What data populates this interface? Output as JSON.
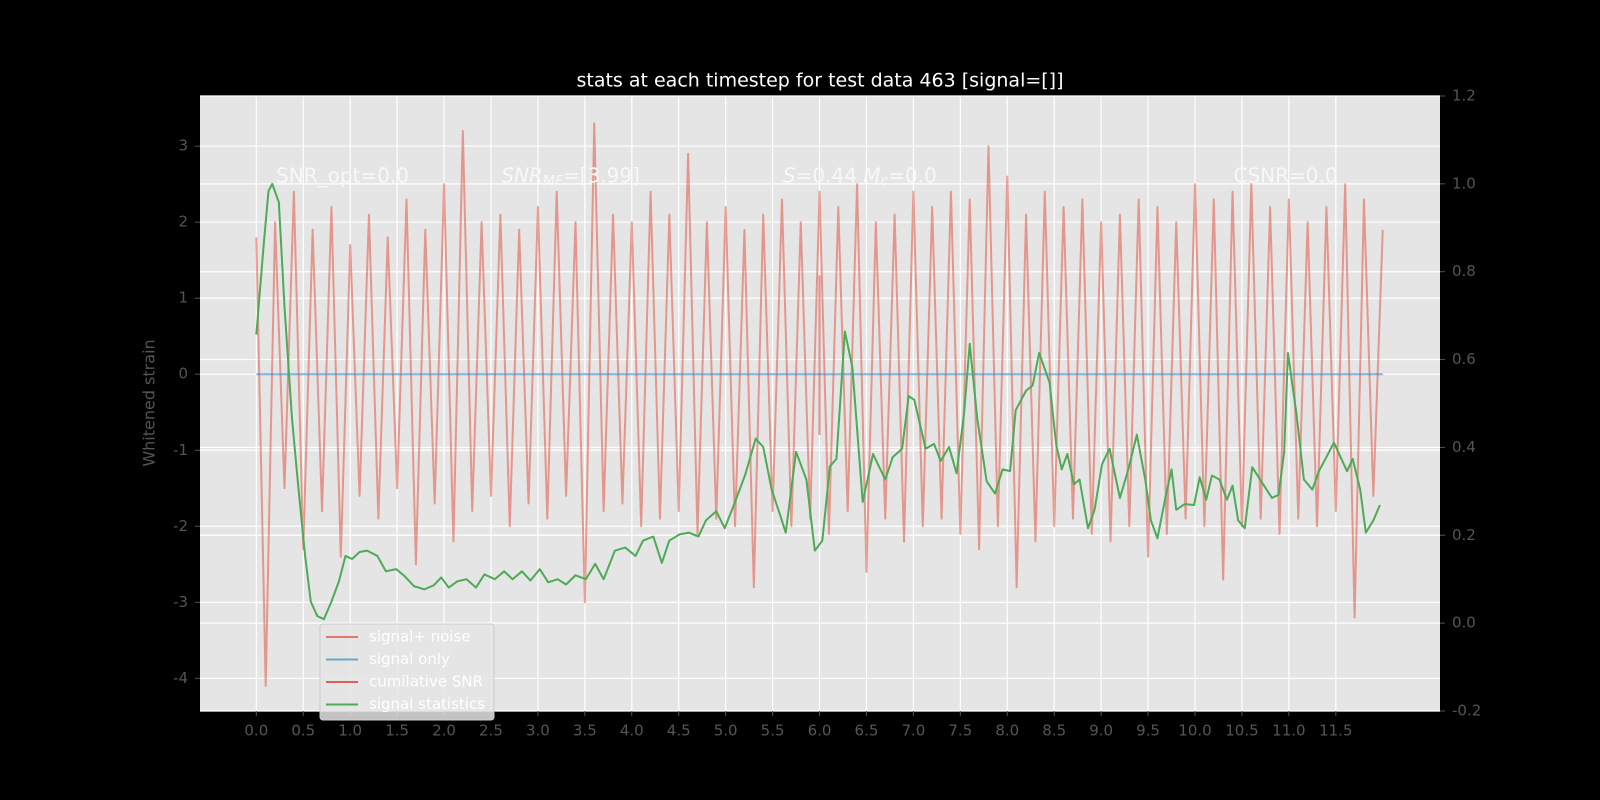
{
  "chart_data": {
    "type": "line",
    "title": "stats at each timestep for test data 463 [signal=[]]",
    "ylabel": "Whitened strain",
    "xlim": [
      -0.6,
      12.61
    ],
    "ylim": [
      -4.43,
      3.66
    ],
    "y2lim": [
      -0.2,
      1.2
    ],
    "xticks": [
      {
        "value": 0,
        "label": "0.0"
      },
      0.5,
      {
        "value": 1,
        "label": "1.0"
      },
      1.5,
      {
        "value": 2,
        "label": "2.0"
      },
      2.5,
      {
        "value": 3,
        "label": "3.0"
      },
      3.5,
      {
        "value": 4,
        "label": "4.0"
      },
      4.5,
      {
        "value": 5,
        "label": "5.0"
      },
      5.5,
      {
        "value": 6,
        "label": "6.0"
      },
      6.5,
      {
        "value": 7,
        "label": "7.0"
      },
      7.5,
      {
        "value": 8,
        "label": "8.0"
      },
      8.5,
      {
        "value": 9,
        "label": "9.0"
      },
      9.5,
      {
        "value": 10,
        "label": "10.0"
      },
      10.5,
      {
        "value": 11,
        "label": "11.0"
      },
      11.5
    ],
    "yticks": [
      -4,
      -3,
      -2,
      -1,
      0,
      1,
      2,
      3
    ],
    "y2ticks": [
      -0.2,
      {
        "value": 0,
        "label": "0.0"
      },
      0.2,
      0.4,
      0.6,
      0.8,
      {
        "value": 1,
        "label": "1.0"
      },
      1.2
    ],
    "grid": true,
    "legend": "lower left",
    "annotations": [
      {
        "x": 0.21,
        "y": 2.6,
        "parts": [
          {
            "text": "SNR_opt=0.0"
          }
        ]
      },
      {
        "x": 2.61,
        "y": 2.6,
        "parts": [
          {
            "text": "SNR",
            "italic": true
          },
          {
            "text": "MF",
            "italic": true,
            "sub": true
          },
          {
            "text": "=[3.99]"
          }
        ]
      },
      {
        "x": 5.61,
        "y": 2.6,
        "parts": [
          {
            "text": "S",
            "italic": true
          },
          {
            "text": "=0.44   "
          },
          {
            "text": "M",
            "italic": true
          },
          {
            "text": "c",
            "italic": true,
            "sub": true
          },
          {
            "text": "=0.0"
          }
        ]
      },
      {
        "x": 10.41,
        "y": 2.6,
        "parts": [
          {
            "text": "CSNR=0.0"
          }
        ]
      }
    ],
    "series": [
      {
        "name": "signal+ noise",
        "color": "#E24A33",
        "opacity": 0.5,
        "x": [
          0,
          0.1,
          0.2,
          0.3,
          0.4,
          0.5,
          0.6,
          0.7,
          0.8,
          0.9,
          1,
          1.1,
          1.2,
          1.3,
          1.4,
          1.5,
          1.6,
          1.7,
          1.8,
          1.9,
          2,
          2.1,
          2.2,
          2.3,
          2.4,
          2.5,
          2.6,
          2.7,
          2.8,
          2.9,
          3,
          3.1,
          3.2,
          3.3,
          3.4,
          3.5,
          3.6,
          3.7,
          3.8,
          3.9,
          4,
          4.1,
          4.2,
          4.3,
          4.4,
          4.5,
          4.6,
          4.7,
          4.8,
          4.9,
          5,
          5.1,
          5.2,
          5.3,
          5.4,
          5.5,
          5.6,
          5.7,
          5.8,
          5.9,
          6,
          6.1,
          6.2,
          6.3,
          6.4,
          6.5,
          6.6,
          6.7,
          6.8,
          6.9,
          7,
          7.1,
          7.2,
          7.3,
          7.4,
          7.5,
          7.6,
          7.7,
          7.8,
          7.9,
          8,
          8.1,
          8.2,
          8.3,
          8.4,
          8.5,
          8.6,
          8.7,
          8.8,
          8.9,
          9,
          9.1,
          9.2,
          9.3,
          9.4,
          9.5,
          9.6,
          9.7,
          9.8,
          9.9,
          10,
          10.1,
          10.2,
          10.3,
          10.4,
          10.5,
          10.6,
          10.7,
          10.8,
          10.9,
          11,
          11.1,
          11.2,
          11.3,
          11.4,
          11.5,
          11.6,
          11.7,
          11.8,
          11.9,
          12
        ],
        "values": [
          1.8,
          -4.1,
          2.0,
          -1.5,
          2.4,
          -2.3,
          1.9,
          -1.8,
          2.2,
          -2.4,
          1.7,
          -1.6,
          2.1,
          -1.9,
          1.8,
          -1.5,
          2.3,
          -2.5,
          1.9,
          -1.7,
          2.5,
          -2.2,
          3.2,
          -1.8,
          2.0,
          -1.6,
          2.1,
          -2.0,
          1.9,
          -1.7,
          2.2,
          -1.9,
          2.4,
          -1.6,
          2.0,
          -3.0,
          3.3,
          -1.8,
          2.1,
          -1.7,
          2.0,
          -2.0,
          2.4,
          -1.9,
          2.1,
          -1.8,
          2.9,
          -2.1,
          2.0,
          -1.9,
          2.2,
          -2.0,
          1.9,
          -2.8,
          2.1,
          -1.8,
          2.3,
          -2.0,
          2.0,
          -1.9,
          2.4,
          -2.1,
          2.2,
          -1.8,
          2.5,
          -2.6,
          2.0,
          -1.9,
          2.1,
          -2.2,
          2.4,
          -2.0,
          2.2,
          -1.9,
          2.4,
          -2.1,
          2.3,
          -2.3,
          3.0,
          -2.0,
          2.6,
          -2.8,
          2.1,
          -2.2,
          2.4,
          -2.0,
          2.2,
          -1.9,
          2.3,
          -2.1,
          2.0,
          -2.2,
          2.1,
          -2.0,
          2.3,
          -2.4,
          2.2,
          -2.1,
          2.0,
          -1.9,
          2.5,
          -2.0,
          2.3,
          -2.7,
          2.4,
          -2.0,
          2.5,
          -1.9,
          2.2,
          -2.1,
          2.3,
          -1.9,
          2.0,
          -2.0,
          2.2,
          -1.8,
          2.5,
          -3.2,
          2.3,
          -1.6,
          1.9
        ]
      },
      {
        "name": "signal only",
        "color": "#348ABD",
        "opacity": 0.6,
        "x": [
          0,
          12
        ],
        "values": [
          0,
          0
        ]
      },
      {
        "name": "cumilative SNR",
        "color": "#d7261e",
        "opacity": 0.5,
        "x": [
          6.0,
          6.0
        ],
        "values": [
          1.3,
          -0.8
        ]
      },
      {
        "name": "signal statistics",
        "color": "#4daa57",
        "opacity": 1,
        "axis": "y2",
        "x": [
          0,
          0.08,
          0.13,
          0.17,
          0.24,
          0.3,
          0.38,
          0.45,
          0.52,
          0.58,
          0.65,
          0.72,
          0.8,
          0.88,
          0.95,
          1.02,
          1.1,
          1.18,
          1.29,
          1.38,
          1.49,
          1.58,
          1.68,
          1.79,
          1.89,
          1.97,
          2.05,
          2.14,
          2.24,
          2.34,
          2.43,
          2.54,
          2.64,
          2.73,
          2.83,
          2.92,
          3.02,
          3.11,
          3.21,
          3.3,
          3.4,
          3.51,
          3.61,
          3.7,
          3.82,
          3.93,
          4.04,
          4.12,
          4.23,
          4.32,
          4.4,
          4.51,
          4.61,
          4.71,
          4.79,
          4.9,
          4.99,
          5.1,
          5.21,
          5.32,
          5.4,
          5.49,
          5.58,
          5.64,
          5.75,
          5.86,
          5.95,
          6.03,
          6.11,
          6.18,
          6.27,
          6.35,
          6.46,
          6.57,
          6.7,
          6.78,
          6.88,
          6.95,
          7.01,
          7.13,
          7.22,
          7.29,
          7.38,
          7.46,
          7.54,
          7.6,
          7.68,
          7.78,
          7.87,
          7.95,
          8.03,
          8.09,
          8.2,
          8.27,
          8.34,
          8.45,
          8.52,
          8.58,
          8.64,
          8.71,
          8.77,
          8.86,
          8.93,
          9.01,
          9.09,
          9.2,
          9.29,
          9.38,
          9.47,
          9.53,
          9.6,
          9.68,
          9.75,
          9.8,
          9.89,
          9.99,
          10.05,
          10.12,
          10.18,
          10.26,
          10.34,
          10.4,
          10.46,
          10.53,
          10.61,
          10.72,
          10.82,
          10.89,
          10.95,
          10.99,
          11.08,
          11.16,
          11.25,
          11.32,
          11.4,
          11.48,
          11.55,
          11.62,
          11.68,
          11.76,
          11.82,
          11.9,
          11.97
        ],
        "values": [
          0.657,
          0.865,
          0.984,
          1.0,
          0.958,
          0.72,
          0.466,
          0.304,
          0.153,
          0.049,
          0.016,
          0.009,
          0.049,
          0.095,
          0.153,
          0.146,
          0.162,
          0.165,
          0.153,
          0.118,
          0.123,
          0.107,
          0.084,
          0.077,
          0.086,
          0.104,
          0.081,
          0.095,
          0.1,
          0.081,
          0.111,
          0.1,
          0.118,
          0.1,
          0.118,
          0.097,
          0.123,
          0.093,
          0.1,
          0.088,
          0.109,
          0.1,
          0.135,
          0.1,
          0.165,
          0.172,
          0.153,
          0.188,
          0.197,
          0.137,
          0.188,
          0.202,
          0.206,
          0.197,
          0.234,
          0.255,
          0.216,
          0.276,
          0.339,
          0.42,
          0.401,
          0.304,
          0.246,
          0.206,
          0.39,
          0.327,
          0.165,
          0.188,
          0.357,
          0.374,
          0.664,
          0.582,
          0.276,
          0.385,
          0.327,
          0.378,
          0.397,
          0.517,
          0.508,
          0.397,
          0.408,
          0.369,
          0.401,
          0.341,
          0.478,
          0.636,
          0.466,
          0.323,
          0.295,
          0.35,
          0.346,
          0.485,
          0.529,
          0.541,
          0.615,
          0.548,
          0.408,
          0.35,
          0.385,
          0.316,
          0.327,
          0.216,
          0.258,
          0.362,
          0.397,
          0.285,
          0.35,
          0.429,
          0.327,
          0.234,
          0.193,
          0.281,
          0.35,
          0.258,
          0.271,
          0.269,
          0.332,
          0.281,
          0.336,
          0.327,
          0.281,
          0.313,
          0.234,
          0.216,
          0.355,
          0.318,
          0.285,
          0.292,
          0.39,
          0.615,
          0.478,
          0.327,
          0.304,
          0.346,
          0.378,
          0.411,
          0.378,
          0.346,
          0.374,
          0.304,
          0.206,
          0.234,
          0.269
        ]
      }
    ]
  }
}
